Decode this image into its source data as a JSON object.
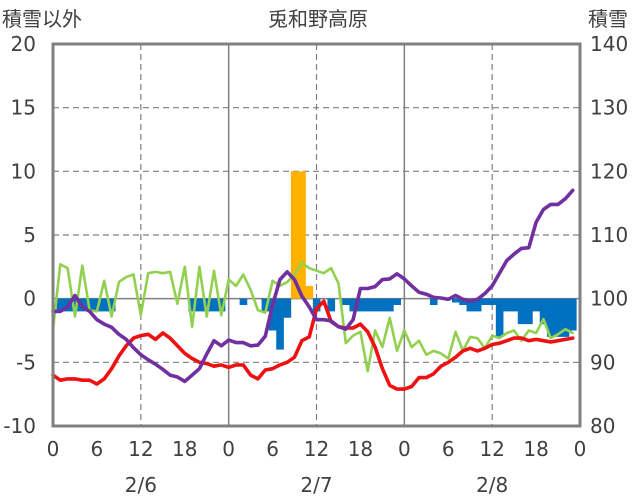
{
  "chart_data": {
    "type": "bar+line",
    "title": "兎和野高原",
    "ylabel_left": "積雪以外",
    "ylabel_right": "積雪",
    "ylim_left": [
      -10,
      20
    ],
    "yticks_left": [
      20,
      15,
      10,
      5,
      0,
      -5,
      -10
    ],
    "ylim_right": [
      80,
      140
    ],
    "yticks_right": [
      140,
      130,
      120,
      110,
      100,
      90,
      80
    ],
    "x_range_hours": [
      0,
      72
    ],
    "hour_ticks": [
      0,
      6,
      12,
      18,
      24,
      30,
      36,
      42,
      48,
      54,
      60,
      66,
      72
    ],
    "hour_tick_labels": [
      "0",
      "6",
      "12",
      "18",
      "0",
      "6",
      "12",
      "18",
      "0",
      "6",
      "12",
      "18",
      "0"
    ],
    "day_labels": [
      {
        "label": "2/6",
        "hour": 12
      },
      {
        "label": "2/7",
        "hour": 36
      },
      {
        "label": "2/8",
        "hour": 60
      }
    ],
    "day_boundaries": [
      24,
      48
    ],
    "grid_hours": [
      12,
      36,
      60
    ],
    "grid_values": [
      15,
      10,
      5,
      -5
    ],
    "colors": {
      "precip": "#ffb300",
      "snow_change": "#0070c0",
      "temperature": "#ee1111",
      "wind": "#92d050",
      "snow_depth": "#7030a0",
      "axis": "#808080",
      "grid": "#7f7f7f"
    },
    "series": [
      {
        "name": "precipitation",
        "axis": "left",
        "kind": "bar",
        "hours": [
          33,
          34,
          35
        ],
        "values": [
          10,
          10,
          1
        ]
      },
      {
        "name": "snow depth change",
        "axis": "left",
        "kind": "bar",
        "hours": [
          1,
          2,
          3,
          4,
          5,
          6,
          7,
          8,
          19,
          20,
          21,
          22,
          23,
          26,
          29,
          30,
          31,
          32,
          36,
          38,
          40,
          41,
          42,
          43,
          44,
          45,
          46,
          47,
          52,
          55,
          56,
          57,
          58,
          59,
          60,
          61,
          62,
          63,
          64,
          65,
          66,
          67,
          68,
          69,
          70,
          71
        ],
        "values": [
          -1,
          -1,
          -1,
          -1,
          -1,
          -1,
          -1,
          -1,
          -1,
          -1,
          -1,
          -1,
          -1,
          -0.5,
          -1,
          -2.5,
          -4,
          -1.5,
          -1,
          -1,
          -0.5,
          -1,
          -1,
          -1,
          -1,
          -1,
          -1,
          -0.5,
          -0.5,
          -0.3,
          -0.5,
          -1,
          -1,
          -0.5,
          -0.5,
          -3,
          -1,
          -1,
          -2,
          -2,
          -1,
          -2,
          -3,
          -3,
          -3,
          -2.5
        ]
      },
      {
        "name": "temperature",
        "axis": "left",
        "kind": "line",
        "hours": [
          0,
          1,
          2,
          3,
          4,
          5,
          6,
          7,
          8,
          9,
          10,
          11,
          12,
          13,
          14,
          15,
          16,
          17,
          18,
          19,
          20,
          21,
          22,
          23,
          24,
          25,
          26,
          27,
          28,
          29,
          30,
          31,
          32,
          33,
          34,
          35,
          36,
          37,
          38,
          39,
          40,
          41,
          42,
          43,
          44,
          45,
          46,
          47,
          48,
          49,
          50,
          51,
          52,
          53,
          54,
          55,
          56,
          57,
          58,
          59,
          60,
          61,
          62,
          63,
          64,
          65,
          66,
          67,
          68,
          69,
          70,
          71
        ],
        "values": [
          -6,
          -6.4,
          -6.3,
          -6.3,
          -6.4,
          -6.4,
          -6.7,
          -6.3,
          -5.5,
          -4.5,
          -3.7,
          -3.1,
          -2.9,
          -2.8,
          -3.2,
          -2.7,
          -3.1,
          -3.7,
          -4.3,
          -4.7,
          -5,
          -5.1,
          -5.3,
          -5.2,
          -5.4,
          -5.2,
          -5.2,
          -6,
          -6.3,
          -5.6,
          -5.5,
          -5.2,
          -5,
          -4.6,
          -3.3,
          -3,
          -0.8,
          -0.2,
          -1.8,
          -2.2,
          -2.3,
          -2.3,
          -2,
          -2.6,
          -3.8,
          -5.5,
          -6.8,
          -7.1,
          -7.1,
          -6.9,
          -6.2,
          -6.2,
          -5.9,
          -5.3,
          -5,
          -4.6,
          -4.1,
          -3.9,
          -4.1,
          -3.9,
          -3.6,
          -3.5,
          -3.3,
          -3.1,
          -3.1,
          -3.3,
          -3.2,
          -3.3,
          -3.4,
          -3.3,
          -3.2,
          -3.1
        ]
      },
      {
        "name": "wind speed",
        "axis": "left",
        "kind": "line",
        "hours": [
          0,
          1,
          2,
          3,
          4,
          5,
          6,
          7,
          8,
          9,
          10,
          11,
          12,
          13,
          14,
          15,
          16,
          17,
          18,
          19,
          20,
          21,
          22,
          23,
          24,
          25,
          26,
          27,
          28,
          29,
          30,
          31,
          32,
          33,
          34,
          35,
          36,
          37,
          38,
          39,
          40,
          41,
          42,
          43,
          44,
          45,
          46,
          47,
          48,
          49,
          50,
          51,
          52,
          53,
          54,
          55,
          56,
          57,
          58,
          59,
          60,
          61,
          62,
          63,
          64,
          65,
          66,
          67,
          68,
          69,
          70,
          71
        ],
        "values": [
          -2.4,
          2.7,
          2.4,
          -1.4,
          2.6,
          -0.9,
          -1,
          1.4,
          -1.4,
          1.3,
          1.7,
          1.9,
          -1.3,
          2,
          2.1,
          2,
          2.1,
          -0.4,
          2.5,
          -2.2,
          2.5,
          -1.4,
          2.2,
          -1.3,
          1.5,
          1,
          1.9,
          0.7,
          -0.9,
          -1.1,
          1.4,
          1,
          1.3,
          1.9,
          2.8,
          2.4,
          2.2,
          2,
          2.4,
          1.2,
          -3.5,
          -2.9,
          -2.6,
          -5.7,
          -2.5,
          -3.8,
          -1.5,
          -4.1,
          -2.5,
          -3.8,
          -3.3,
          -4.4,
          -4.1,
          -4.3,
          -4.7,
          -2.6,
          -4.1,
          -3,
          -3.1,
          -3.9,
          -2.9,
          -3.1,
          -2.7,
          -2.5,
          -3.3,
          -2.5,
          -2.7,
          -1.6,
          -3.1,
          -2.8,
          -2.4,
          -2.7
        ]
      },
      {
        "name": "snow depth",
        "axis": "right",
        "kind": "line",
        "hours": [
          0,
          1,
          2,
          3,
          4,
          5,
          6,
          7,
          8,
          9,
          10,
          11,
          12,
          13,
          14,
          15,
          16,
          17,
          18,
          19,
          20,
          21,
          22,
          23,
          24,
          25,
          26,
          27,
          28,
          29,
          30,
          31,
          32,
          33,
          34,
          35,
          36,
          37,
          38,
          39,
          40,
          41,
          42,
          43,
          44,
          45,
          46,
          47,
          48,
          49,
          50,
          51,
          52,
          53,
          54,
          55,
          56,
          57,
          58,
          59,
          60,
          61,
          62,
          63,
          64,
          65,
          66,
          67,
          68,
          69,
          70,
          71
        ],
        "values": [
          98,
          98,
          98.7,
          100.5,
          98.7,
          98,
          96.7,
          96,
          95.5,
          94.4,
          93.6,
          92.3,
          91.2,
          90.4,
          89.7,
          88.9,
          88,
          87.7,
          87,
          88,
          89,
          91.3,
          93.4,
          92.6,
          93.5,
          93.1,
          93.1,
          92.6,
          92.7,
          94.1,
          99,
          103,
          104.2,
          103,
          100.4,
          98.7,
          96.7,
          96.7,
          96.5,
          95.6,
          95.2,
          96.7,
          101.6,
          101.6,
          101.9,
          103,
          103.1,
          103.9,
          103.1,
          102,
          101,
          100.7,
          100.2,
          100.1,
          99.9,
          100.5,
          99.9,
          99.6,
          99.9,
          100.8,
          102,
          104,
          106,
          107,
          107.9,
          108,
          112,
          114,
          114.8,
          114.8,
          115.7,
          117
        ]
      }
    ]
  }
}
